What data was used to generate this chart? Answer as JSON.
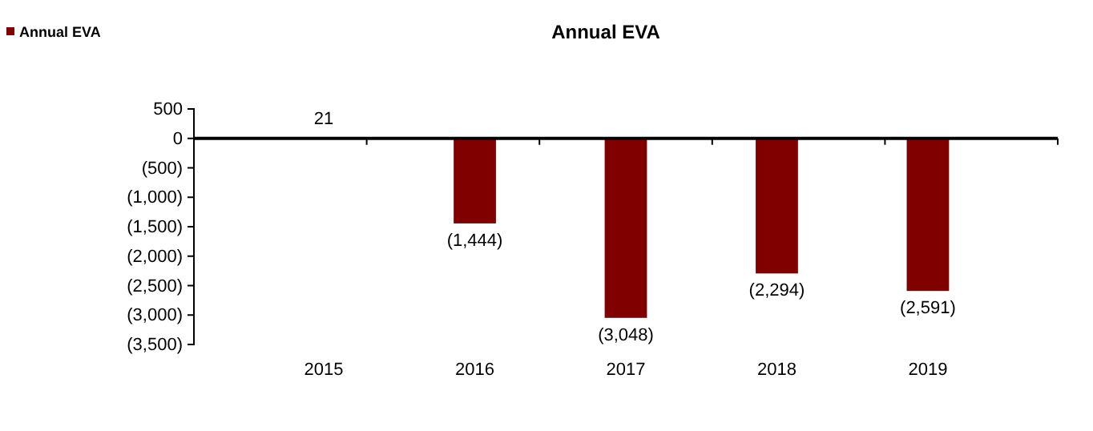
{
  "chart_data": {
    "type": "bar",
    "title": "Annual EVA",
    "categories": [
      "2015",
      "2016",
      "2017",
      "2018",
      "2019"
    ],
    "series": [
      {
        "name": "Annual EVA",
        "color": "#800000",
        "values": [
          21,
          -1444,
          -3048,
          -2294,
          -2591
        ],
        "value_labels": [
          "21",
          "(1,444)",
          "(3,048)",
          "(2,294)",
          "(2,591)"
        ]
      }
    ],
    "ylim": [
      -3500,
      500
    ],
    "yticks": [
      {
        "value": -3500,
        "label": "(3,500)"
      },
      {
        "value": -3000,
        "label": "(3,000)"
      },
      {
        "value": -2500,
        "label": "(2,500)"
      },
      {
        "value": -2000,
        "label": "(2,000)"
      },
      {
        "value": -1500,
        "label": "(1,500)"
      },
      {
        "value": -1000,
        "label": "(1,000)"
      },
      {
        "value": -500,
        "label": "(500)"
      },
      0,
      500
    ],
    "legend": "top left"
  }
}
